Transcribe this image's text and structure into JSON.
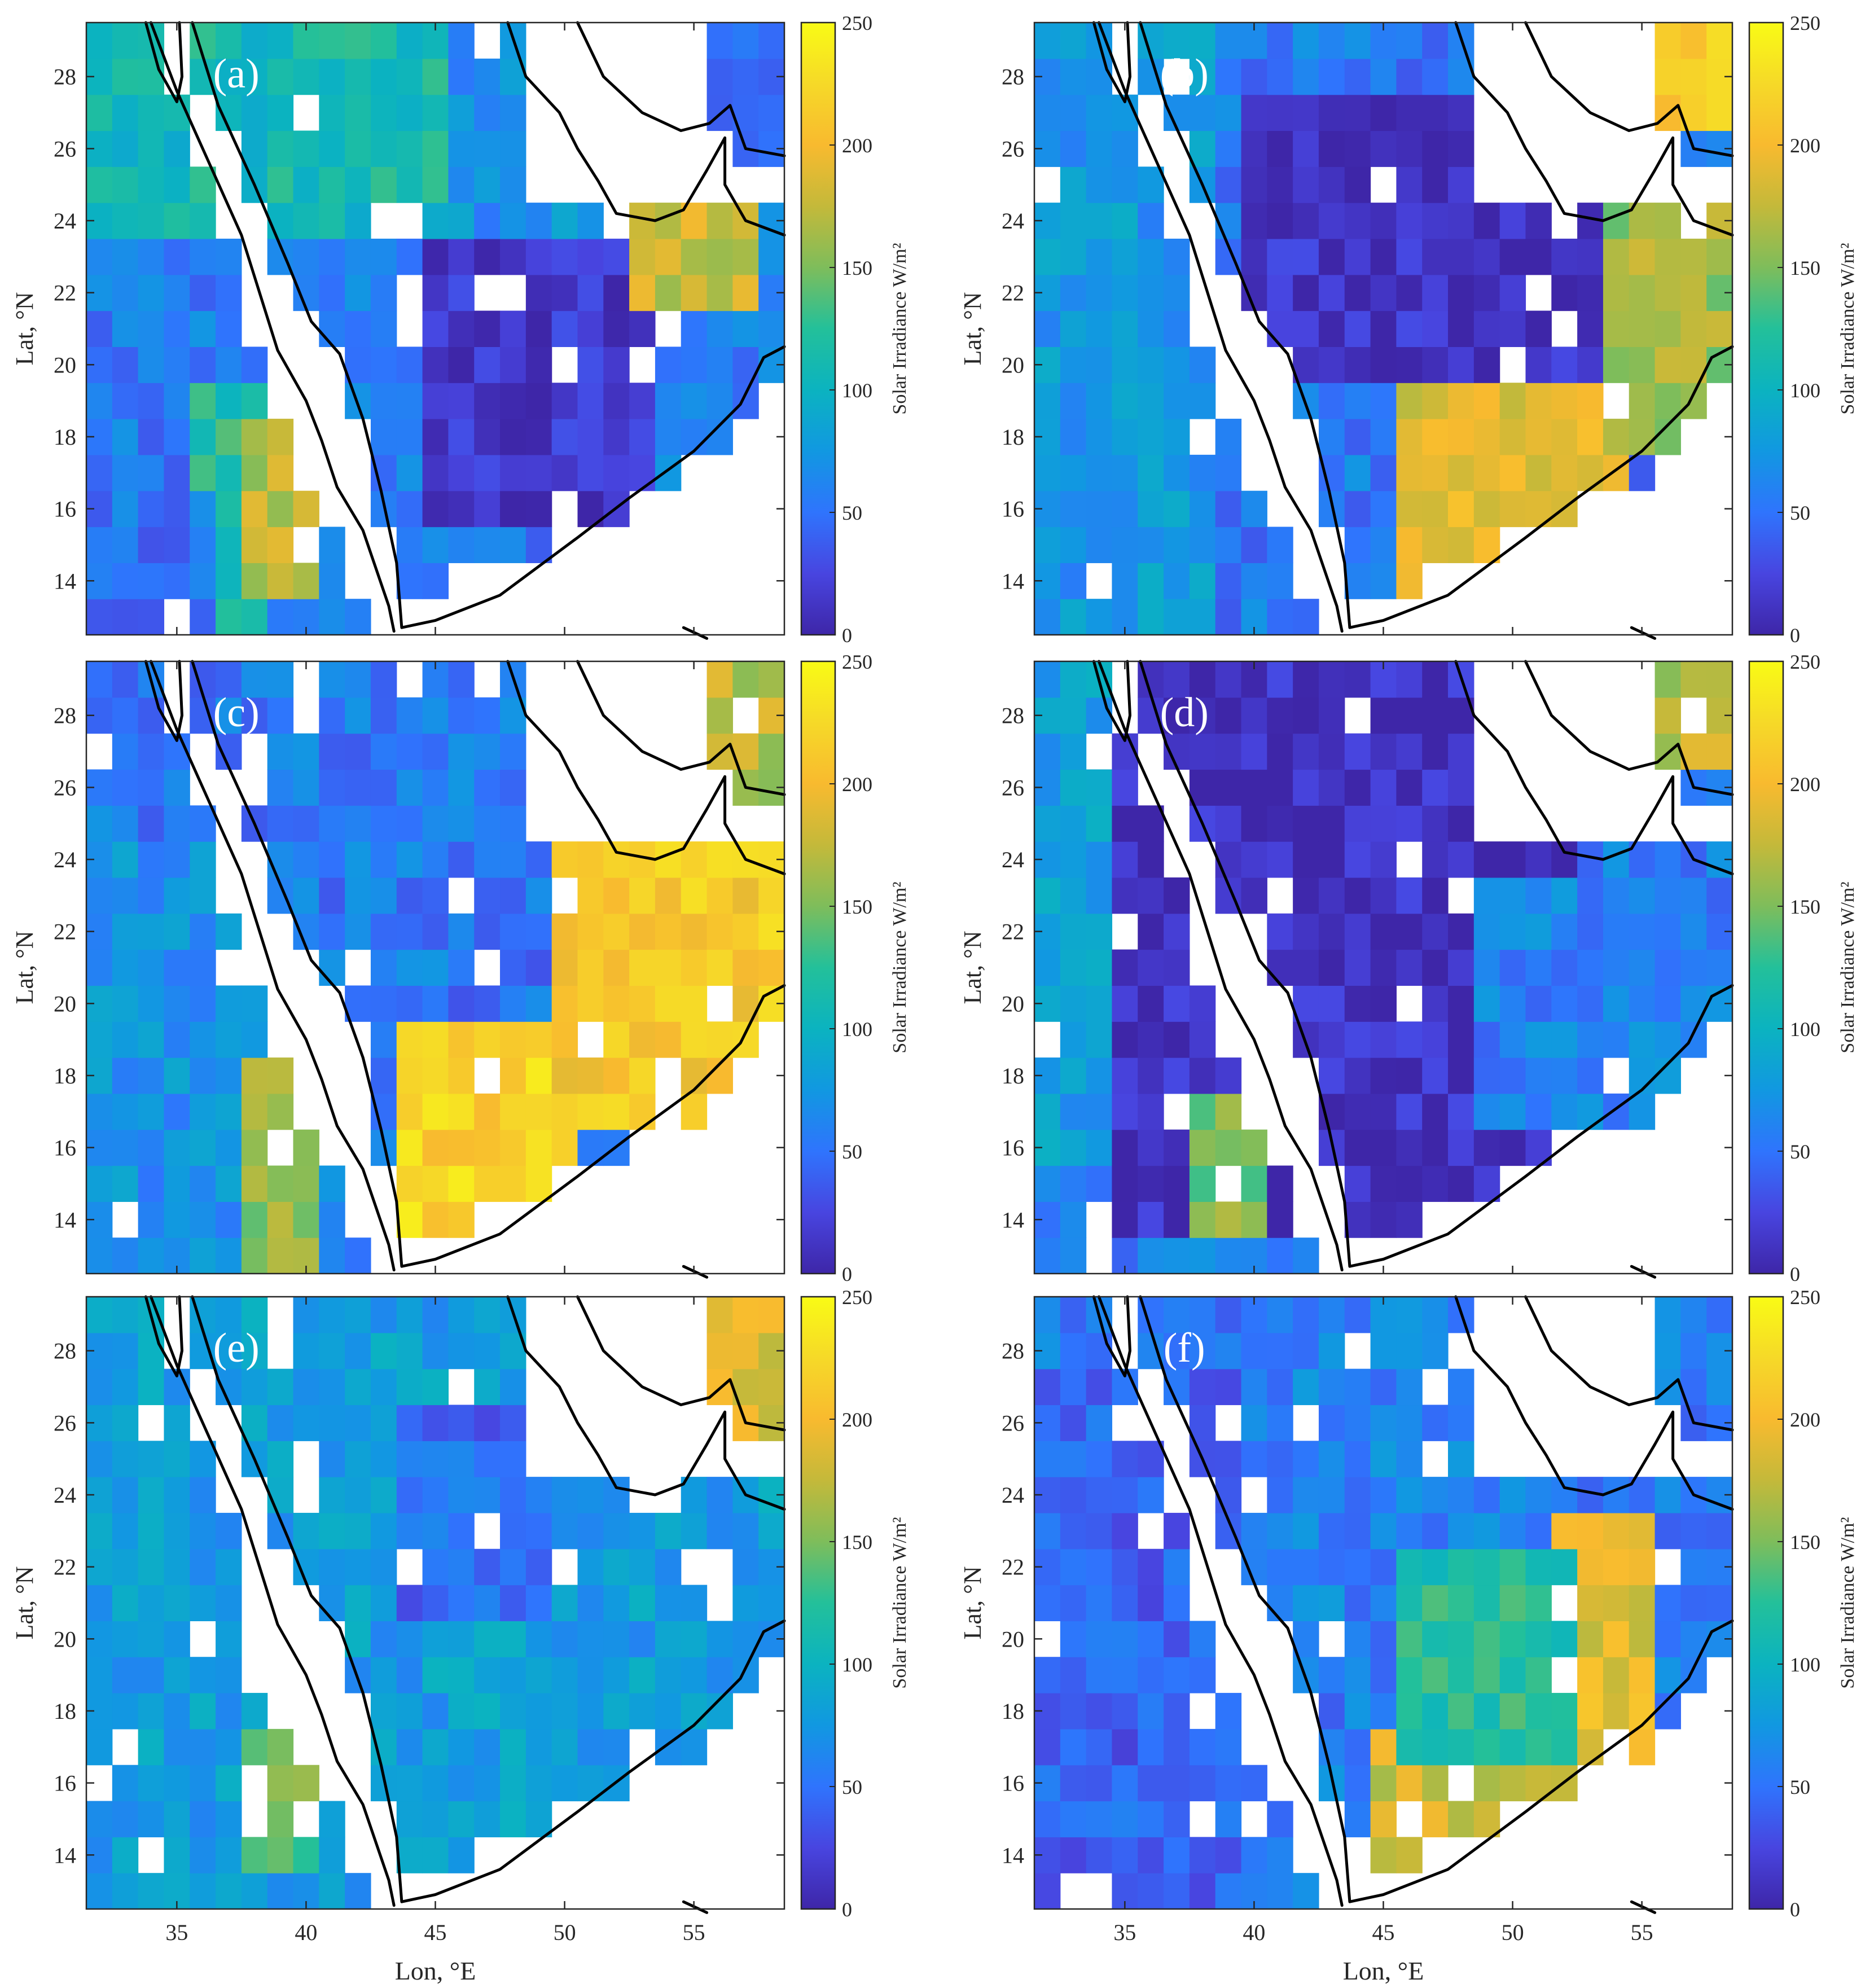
{
  "figure": {
    "panel_layout": "3 rows x 2 columns",
    "colormap": "parula",
    "colormap_stops": [
      "#3e26a8",
      "#4845e0",
      "#2f74fd",
      "#1198e1",
      "#0bb3c0",
      "#23c09a",
      "#7ebd5b",
      "#c4b93a",
      "#f8ba2f",
      "#f6d928",
      "#f9fb15"
    ],
    "land_mask_color": "#ffffff",
    "coastline_color": "#000000"
  },
  "chart_data": [
    {
      "type": "heatmap",
      "panel_label": "(a)",
      "xlabel": "",
      "ylabel": "Lat, °N",
      "xlim": [
        31.5,
        58.5
      ],
      "ylim": [
        12.5,
        29.5
      ],
      "x_ticks": [
        "35",
        "40",
        "45",
        "50",
        "55"
      ],
      "y_ticks": [
        "14",
        "16",
        "18",
        "20",
        "22",
        "24",
        "26",
        "28"
      ],
      "colorbar_label": "Solar Irradiance W/m²",
      "colorbar_range": [
        0,
        250
      ],
      "colorbar_ticks": [
        "0",
        "50",
        "100",
        "150",
        "200",
        "250"
      ],
      "regions": [
        {
          "lon": [
            32,
            46
          ],
          "lat": [
            24,
            29.5
          ],
          "value": 110
        },
        {
          "lon": [
            46,
            53
          ],
          "lat": [
            24,
            29.5
          ],
          "value": 70
        },
        {
          "lon": [
            36,
            38
          ],
          "lat": [
            13,
            19
          ],
          "value": 120
        },
        {
          "lon": [
            38,
            40
          ],
          "lat": [
            14,
            18
          ],
          "value": 170
        },
        {
          "lon": [
            45,
            53
          ],
          "lat": [
            16,
            23
          ],
          "value": 12
        },
        {
          "lon": [
            53,
            57
          ],
          "lat": [
            22,
            24
          ],
          "value": 180
        },
        {
          "lon": [
            32,
            36
          ],
          "lat": [
            13,
            16
          ],
          "value": 50
        }
      ]
    },
    {
      "type": "heatmap",
      "panel_label": "(b)",
      "xlabel": "",
      "ylabel": "Lat, °N",
      "xlim": [
        31.5,
        58.5
      ],
      "ylim": [
        12.5,
        29.5
      ],
      "x_ticks": [
        "35",
        "40",
        "45",
        "50",
        "55"
      ],
      "y_ticks": [
        "14",
        "16",
        "18",
        "20",
        "22",
        "24",
        "26",
        "28"
      ],
      "colorbar_label": "Solar Irradiance W/m²",
      "colorbar_range": [
        0,
        250
      ],
      "colorbar_ticks": [
        "0",
        "50",
        "100",
        "150",
        "200",
        "250"
      ],
      "regions": [
        {
          "lon": [
            32,
            38
          ],
          "lat": [
            13,
            29.5
          ],
          "value": 75
        },
        {
          "lon": [
            40,
            54
          ],
          "lat": [
            20,
            27
          ],
          "value": 10
        },
        {
          "lon": [
            46,
            54
          ],
          "lat": [
            14,
            19
          ],
          "value": 190
        },
        {
          "lon": [
            54,
            58
          ],
          "lat": [
            18,
            24
          ],
          "value": 160
        },
        {
          "lon": [
            53,
            58
          ],
          "lat": [
            27,
            29.5
          ],
          "value": 210
        }
      ]
    },
    {
      "type": "heatmap",
      "panel_label": "(c)",
      "xlabel": "",
      "ylabel": "Lat, °N",
      "xlim": [
        31.5,
        58.5
      ],
      "ylim": [
        12.5,
        29.5
      ],
      "x_ticks": [
        "35",
        "40",
        "45",
        "50",
        "55"
      ],
      "y_ticks": [
        "14",
        "16",
        "18",
        "20",
        "22",
        "24",
        "26",
        "28"
      ],
      "colorbar_label": "Solar Irradiance W/m²",
      "colorbar_range": [
        0,
        250
      ],
      "colorbar_ticks": [
        "0",
        "50",
        "100",
        "150",
        "200",
        "250"
      ],
      "regions": [
        {
          "lon": [
            32,
            38
          ],
          "lat": [
            13,
            24
          ],
          "value": 70
        },
        {
          "lon": [
            38,
            40
          ],
          "lat": [
            13,
            18
          ],
          "value": 160
        },
        {
          "lon": [
            46,
            53
          ],
          "lat": [
            20,
            25
          ],
          "value": 50
        },
        {
          "lon": [
            44,
            50
          ],
          "lat": [
            14,
            19
          ],
          "value": 220
        },
        {
          "lon": [
            50,
            58
          ],
          "lat": [
            17,
            24
          ],
          "value": 210
        },
        {
          "lon": [
            54,
            58
          ],
          "lat": [
            26,
            29.5
          ],
          "value": 170
        }
      ]
    },
    {
      "type": "heatmap",
      "panel_label": "(d)",
      "xlabel": "",
      "ylabel": "Lat, °N",
      "xlim": [
        31.5,
        58.5
      ],
      "ylim": [
        12.5,
        29.5
      ],
      "x_ticks": [
        "35",
        "40",
        "45",
        "50",
        "55"
      ],
      "y_ticks": [
        "14",
        "16",
        "18",
        "20",
        "22",
        "24",
        "26",
        "28"
      ],
      "colorbar_label": "Solar Irradiance W/m²",
      "colorbar_range": [
        0,
        250
      ],
      "colorbar_ticks": [
        "0",
        "50",
        "100",
        "150",
        "200",
        "250"
      ],
      "regions": [
        {
          "lon": [
            32,
            35
          ],
          "lat": [
            16,
            29.5
          ],
          "value": 80
        },
        {
          "lon": [
            35,
            52
          ],
          "lat": [
            14,
            29.5
          ],
          "value": 8
        },
        {
          "lon": [
            49,
            58
          ],
          "lat": [
            17,
            23
          ],
          "value": 60
        },
        {
          "lon": [
            38,
            40
          ],
          "lat": [
            14,
            17
          ],
          "value": 150
        },
        {
          "lon": [
            54,
            58
          ],
          "lat": [
            27,
            29.5
          ],
          "value": 170
        }
      ]
    },
    {
      "type": "heatmap",
      "panel_label": "(e)",
      "xlabel": "Lon, °E",
      "ylabel": "Lat, °N",
      "xlim": [
        31.5,
        58.5
      ],
      "ylim": [
        12.5,
        29.5
      ],
      "x_ticks": [
        "35",
        "40",
        "45",
        "50",
        "55"
      ],
      "y_ticks": [
        "14",
        "16",
        "18",
        "20",
        "22",
        "24",
        "26",
        "28"
      ],
      "colorbar_label": "Solar Irradiance W/m²",
      "colorbar_range": [
        0,
        250
      ],
      "colorbar_ticks": [
        "0",
        "50",
        "100",
        "150",
        "200",
        "250"
      ],
      "regions": [
        {
          "lon": [
            32,
            58
          ],
          "lat": [
            13,
            29.5
          ],
          "value": 80
        },
        {
          "lon": [
            44,
            49
          ],
          "lat": [
            21,
            26
          ],
          "value": 45
        },
        {
          "lon": [
            38,
            40
          ],
          "lat": [
            14,
            17
          ],
          "value": 140
        },
        {
          "lon": [
            54,
            58
          ],
          "lat": [
            26,
            29.5
          ],
          "value": 190
        }
      ]
    },
    {
      "type": "heatmap",
      "panel_label": "(f)",
      "xlabel": "Lon, °E",
      "ylabel": "Lat, °N",
      "xlim": [
        31.5,
        58.5
      ],
      "ylim": [
        12.5,
        29.5
      ],
      "x_ticks": [
        "35",
        "40",
        "45",
        "50",
        "55"
      ],
      "y_ticks": [
        "14",
        "16",
        "18",
        "20",
        "22",
        "24",
        "26",
        "28"
      ],
      "colorbar_label": "Solar Irradiance W/m²",
      "colorbar_range": [
        0,
        250
      ],
      "colorbar_ticks": [
        "0",
        "50",
        "100",
        "150",
        "200",
        "250"
      ],
      "regions": [
        {
          "lon": [
            32,
            40
          ],
          "lat": [
            13,
            27
          ],
          "value": 40
        },
        {
          "lon": [
            40,
            50
          ],
          "lat": [
            20,
            29.5
          ],
          "value": 60
        },
        {
          "lon": [
            45,
            55
          ],
          "lat": [
            14,
            17
          ],
          "value": 180
        },
        {
          "lon": [
            52,
            55
          ],
          "lat": [
            17,
            23
          ],
          "value": 190
        },
        {
          "lon": [
            46,
            52
          ],
          "lat": [
            17,
            22
          ],
          "value": 120
        }
      ]
    }
  ]
}
